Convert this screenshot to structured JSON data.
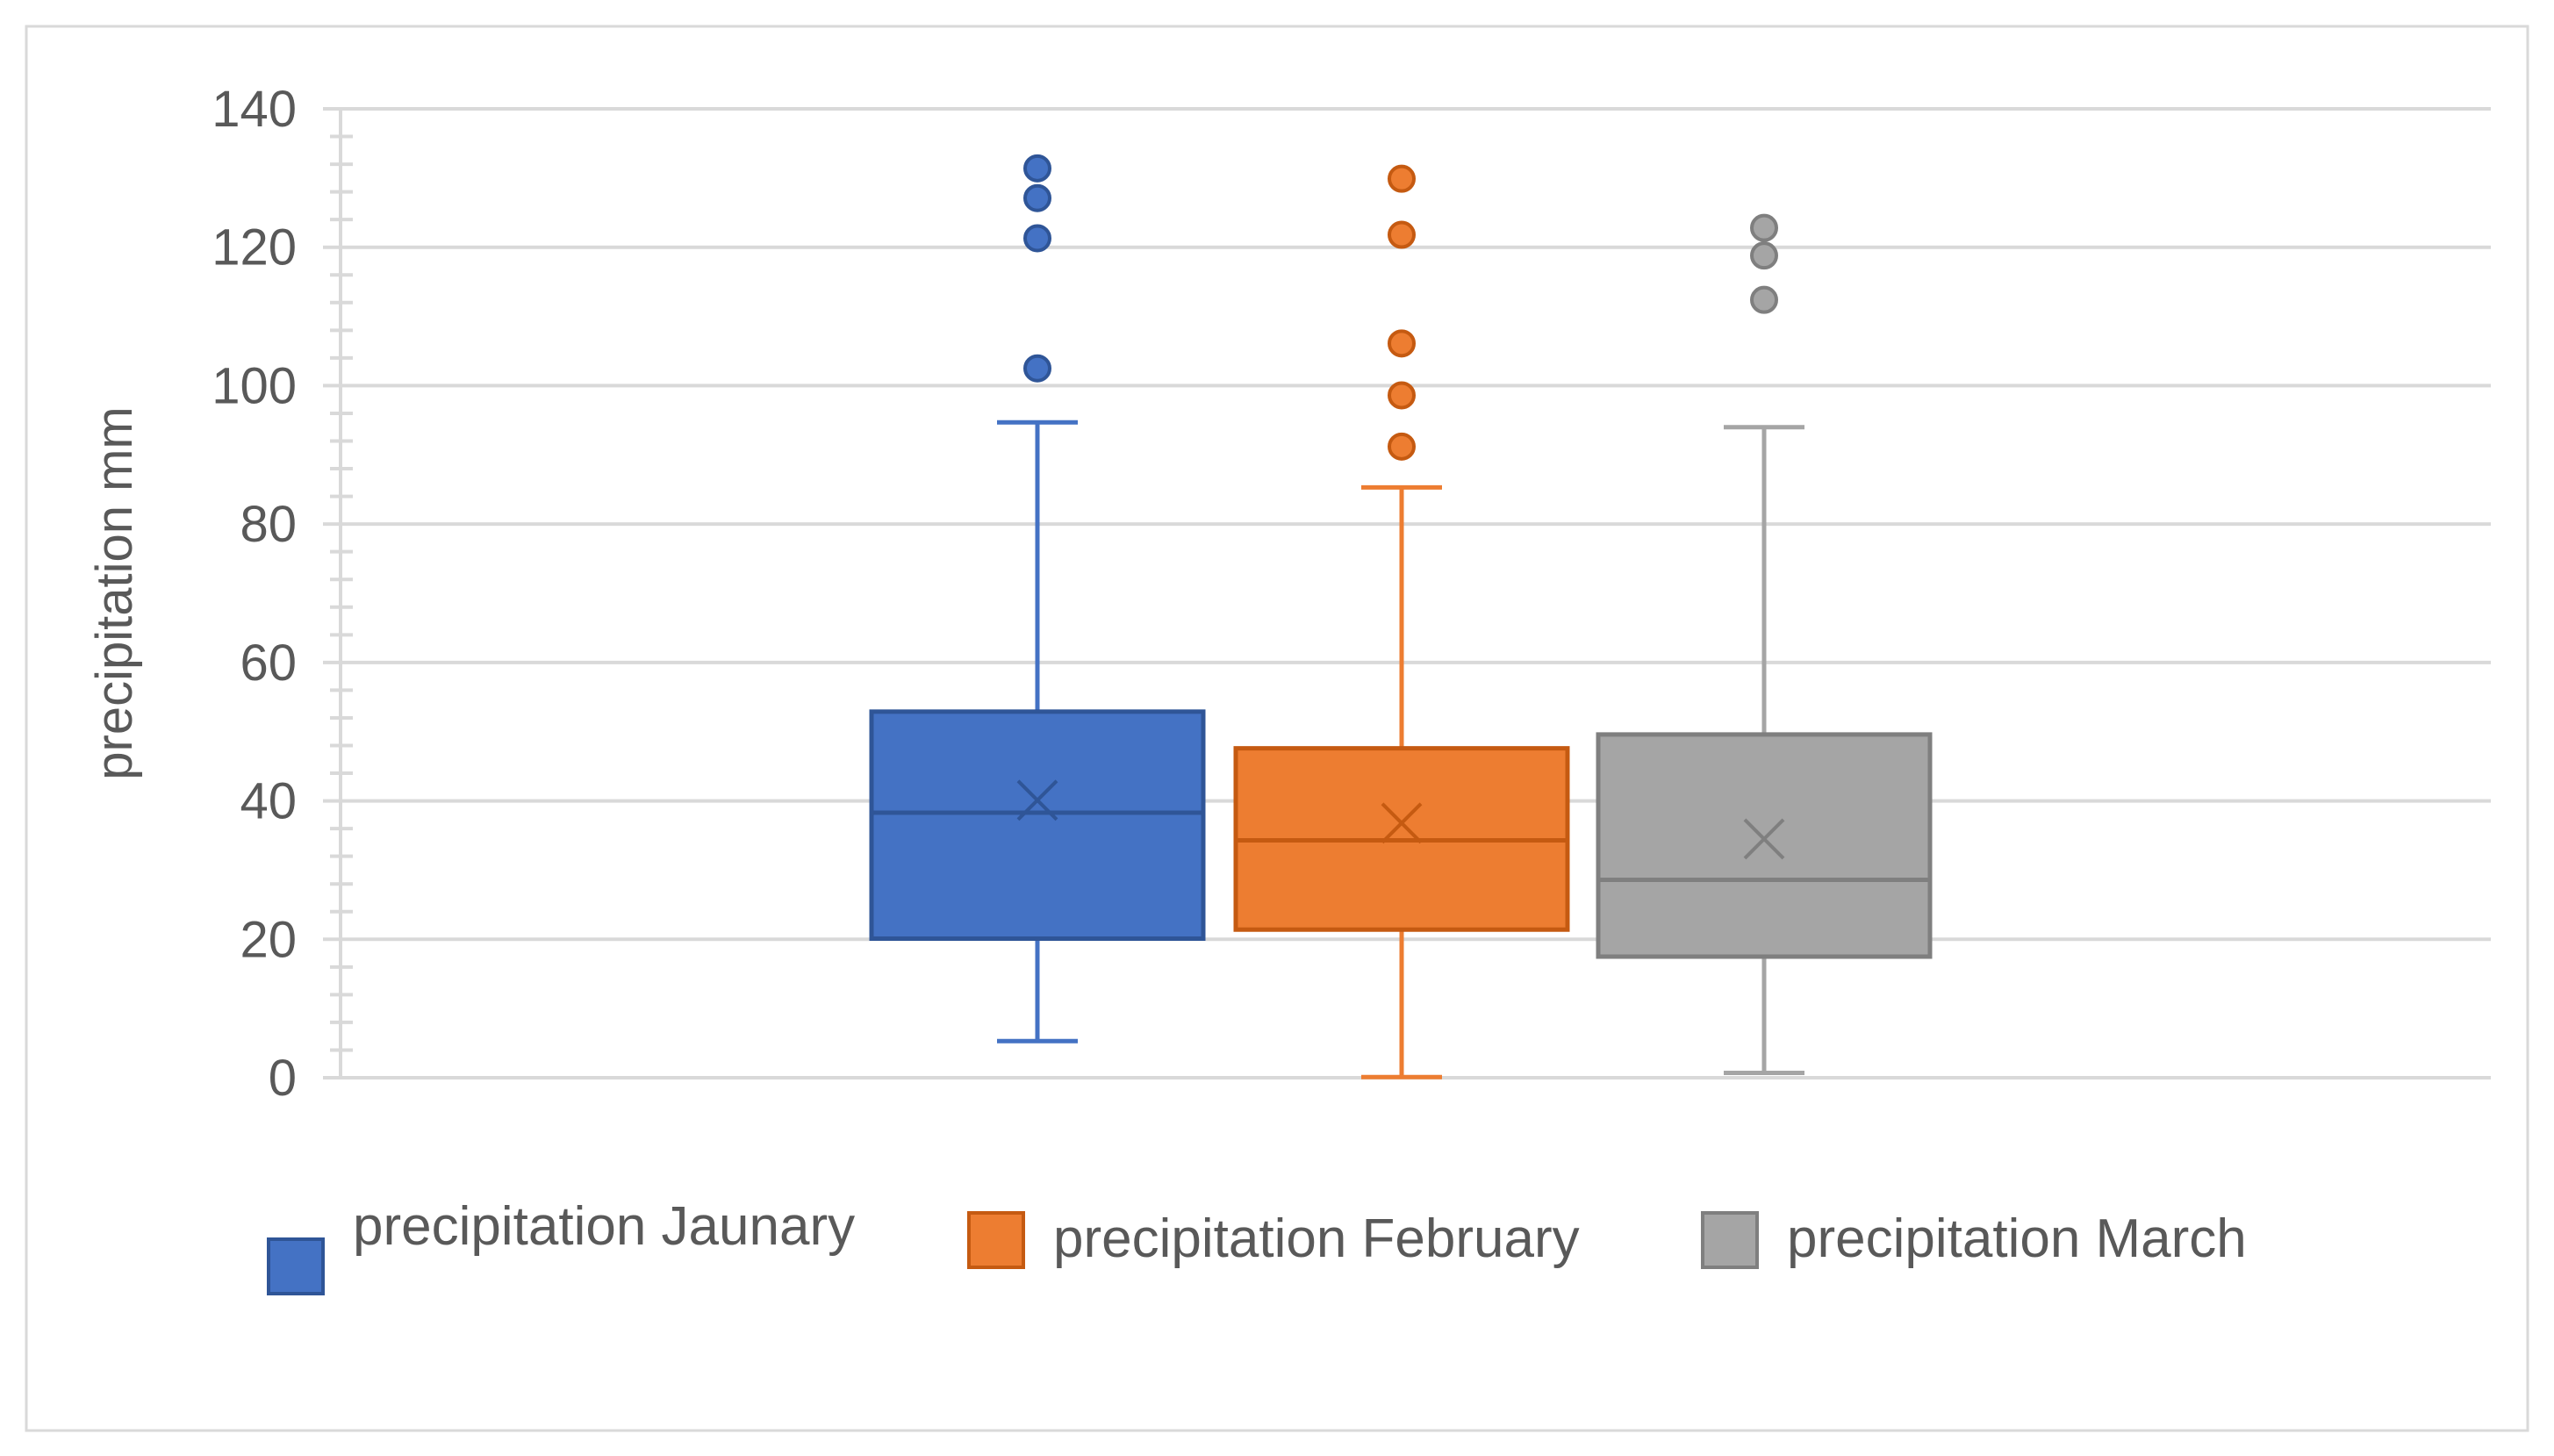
{
  "chart_data": {
    "type": "box",
    "ylabel": "precipitation mm",
    "xlabel": "",
    "ylim": [
      0,
      140
    ],
    "yticks": [
      0,
      20,
      40,
      60,
      80,
      100,
      120,
      140
    ],
    "minor_tick_step": 4,
    "grid": true,
    "legend_position": "bottom",
    "series": [
      {
        "name": "precipitation Jaunary",
        "color": "#4472C4",
        "whisker_low": 5.3,
        "q1": 20.1,
        "median": 38.3,
        "q3": 52.9,
        "whisker_high": 94.7,
        "mean": 40.1,
        "outliers": [
          102.5,
          121.3,
          127.1,
          131.4
        ]
      },
      {
        "name": "precipitation February",
        "color": "#ED7D31",
        "whisker_low": 0.1,
        "q1": 21.4,
        "median": 34.3,
        "q3": 47.6,
        "whisker_high": 85.3,
        "mean": 36.8,
        "outliers": [
          91.2,
          98.6,
          106.1,
          121.8,
          129.9
        ]
      },
      {
        "name": "precipitation March",
        "color": "#A5A5A5",
        "whisker_low": 0.7,
        "q1": 17.5,
        "median": 28.6,
        "q3": 49.6,
        "whisker_high": 94.0,
        "mean": 34.5,
        "outliers": [
          112.4,
          118.8,
          122.8
        ]
      }
    ]
  }
}
